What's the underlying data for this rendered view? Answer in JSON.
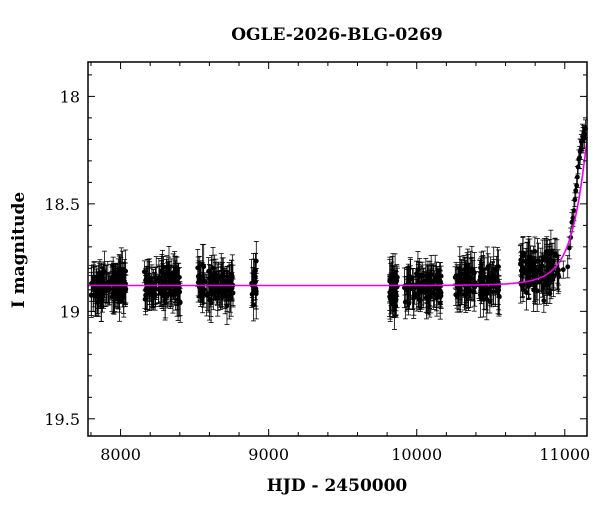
{
  "chart_data": {
    "type": "scatter",
    "title": "OGLE-2026-BLG-0269",
    "xlabel": "HJD - 2450000",
    "ylabel": "I magnitude",
    "xlim": [
      7780,
      11150
    ],
    "ylim": [
      19.58,
      17.84
    ],
    "y_inverted": true,
    "grid": false,
    "x_ticks": [
      {
        "value": 8000,
        "label": "8000"
      },
      {
        "value": 9000,
        "label": "9000"
      },
      {
        "value": 10000,
        "label": "10000"
      },
      {
        "value": 11000,
        "label": "11000"
      }
    ],
    "y_ticks": [
      {
        "value": 18,
        "label": "18"
      },
      {
        "value": 18.5,
        "label": "18.5"
      },
      {
        "value": 19,
        "label": "19"
      },
      {
        "value": 19.5,
        "label": "19.5"
      }
    ],
    "series": [
      {
        "kind": "observations",
        "color": "#000000",
        "clusters": [
          {
            "start": 7800,
            "end": 8040,
            "mag_center": 18.88,
            "mag_scatter": 0.07,
            "err_typical": 0.07,
            "count": 110
          },
          {
            "start": 8160,
            "end": 8410,
            "mag_center": 18.88,
            "mag_scatter": 0.07,
            "err_typical": 0.07,
            "count": 110
          },
          {
            "start": 8520,
            "end": 8760,
            "mag_center": 18.88,
            "mag_scatter": 0.07,
            "err_typical": 0.07,
            "count": 105
          },
          {
            "start": 8885,
            "end": 8920,
            "mag_center": 18.88,
            "mag_scatter": 0.09,
            "err_typical": 0.08,
            "count": 16
          },
          {
            "start": 9815,
            "end": 9870,
            "mag_center": 18.9,
            "mag_scatter": 0.07,
            "err_typical": 0.07,
            "count": 40
          },
          {
            "start": 9915,
            "end": 10170,
            "mag_center": 18.87,
            "mag_scatter": 0.07,
            "err_typical": 0.07,
            "count": 100
          },
          {
            "start": 10260,
            "end": 10400,
            "mag_center": 18.85,
            "mag_scatter": 0.07,
            "err_typical": 0.07,
            "count": 55
          },
          {
            "start": 10420,
            "end": 10560,
            "mag_center": 18.84,
            "mag_scatter": 0.07,
            "err_typical": 0.07,
            "count": 55
          },
          {
            "start": 10700,
            "end": 10960,
            "mag_center": 18.8,
            "mag_scatter": 0.08,
            "err_typical": 0.07,
            "count": 110
          },
          {
            "start": 10985,
            "end": 11005,
            "mag_center": 18.8,
            "mag_scatter": 0.02,
            "err_typical": 0.06,
            "count": 1
          }
        ]
      },
      {
        "kind": "model",
        "color": "#ee00ee",
        "baseline_mag": 18.88,
        "t0": 11215,
        "tE": 160,
        "u0": 0.45,
        "fs": 1.0
      }
    ],
    "rising_points": [
      {
        "x": 11020,
        "y": 18.78
      },
      {
        "x": 11030,
        "y": 18.72
      },
      {
        "x": 11040,
        "y": 18.66
      },
      {
        "x": 11048,
        "y": 18.6
      },
      {
        "x": 11055,
        "y": 18.56
      },
      {
        "x": 11062,
        "y": 18.52
      },
      {
        "x": 11068,
        "y": 18.47
      },
      {
        "x": 11074,
        "y": 18.44
      },
      {
        "x": 11080,
        "y": 18.4
      },
      {
        "x": 11085,
        "y": 18.37
      },
      {
        "x": 11090,
        "y": 18.33
      },
      {
        "x": 11095,
        "y": 18.3
      },
      {
        "x": 11100,
        "y": 18.28
      },
      {
        "x": 11104,
        "y": 18.26
      },
      {
        "x": 11108,
        "y": 18.24
      },
      {
        "x": 11112,
        "y": 18.22
      },
      {
        "x": 11116,
        "y": 18.21
      },
      {
        "x": 11120,
        "y": 18.2
      },
      {
        "x": 11124,
        "y": 18.19
      },
      {
        "x": 11128,
        "y": 18.18
      },
      {
        "x": 11132,
        "y": 18.18
      },
      {
        "x": 11136,
        "y": 18.17
      },
      {
        "x": 11140,
        "y": 18.16
      }
    ]
  }
}
